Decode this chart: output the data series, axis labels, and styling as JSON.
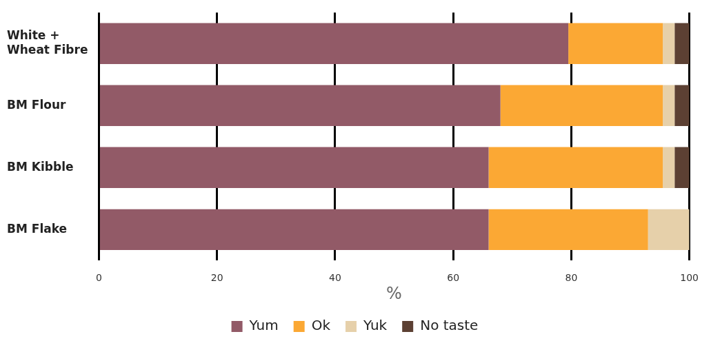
{
  "chart_data": {
    "type": "bar",
    "orientation": "horizontal",
    "stacked": true,
    "xlabel": "%",
    "categories": [
      [
        "White +",
        "Wheat Fibre"
      ],
      "BM Flour",
      "BM Kibble",
      "BM Flake"
    ],
    "series": [
      {
        "name": "Yum",
        "color": "#925a67",
        "values": [
          79.5,
          68,
          66,
          66
        ]
      },
      {
        "name": "Ok",
        "color": "#fba834",
        "values": [
          16,
          27.5,
          29.5,
          27
        ]
      },
      {
        "name": "Yuk",
        "color": "#e6d0aa",
        "values": [
          2,
          2,
          2,
          7
        ]
      },
      {
        "name": "No taste",
        "color": "#5c4033",
        "values": [
          2.5,
          2.5,
          2.5,
          0
        ]
      }
    ],
    "xlim": [
      0,
      100
    ],
    "xticks": [
      0,
      20,
      40,
      60,
      80,
      100
    ],
    "grid": "x",
    "legend": "bottom"
  }
}
